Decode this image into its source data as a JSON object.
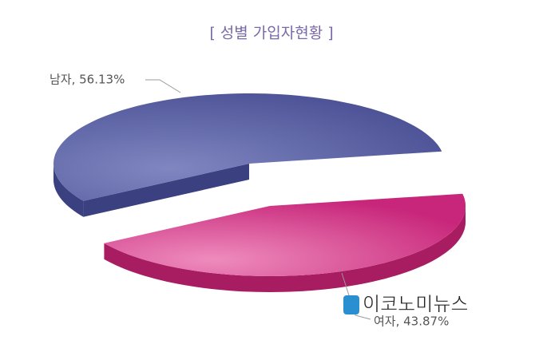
{
  "chart_data": {
    "type": "pie3d",
    "title": "[ 성별 가입자현황 ]",
    "values": [
      56.13,
      43.87
    ],
    "value_labels": [
      "남자, 56.13%",
      "여자, 43.87%"
    ],
    "colors": [
      "#545a9c",
      "#d63a88"
    ],
    "watermark": "이코노미뉴스"
  }
}
